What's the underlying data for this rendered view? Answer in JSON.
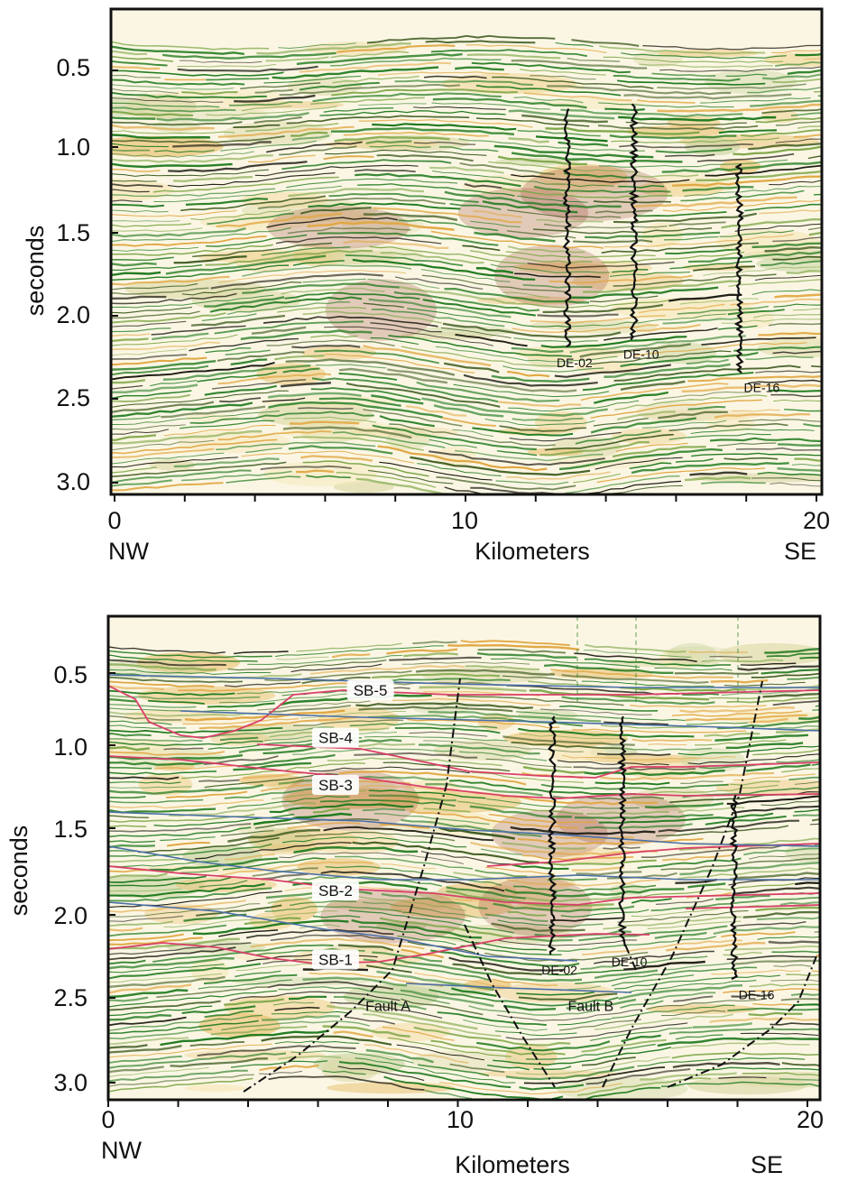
{
  "chart_data": [
    {
      "type": "seismic-section",
      "ylabel": "seconds",
      "xlabel": "Kilometers",
      "x_left_label": "NW",
      "x_right_label": "SE",
      "xlim": [
        0,
        20
      ],
      "ylim": [
        3.0,
        0.5
      ],
      "x_ticks": [
        "0",
        "10",
        "20"
      ],
      "y_ticks": [
        "0.5",
        "1.0",
        "1.5",
        "2.0",
        "2.5",
        "3.0"
      ],
      "wells": [
        {
          "name": "DE-02",
          "x_km": 12.9,
          "top_s": 0.75,
          "bottom_s": 2.2
        },
        {
          "name": "DE-10",
          "x_km": 14.8,
          "top_s": 0.72,
          "bottom_s": 2.15
        },
        {
          "name": "DE-16",
          "x_km": 17.8,
          "top_s": 1.1,
          "bottom_s": 2.35
        }
      ]
    },
    {
      "type": "seismic-section",
      "ylabel": "seconds",
      "xlabel": "Kilometers",
      "x_left_label": "NW",
      "x_right_label": "SE",
      "xlim": [
        0,
        20
      ],
      "ylim": [
        3.0,
        0.5
      ],
      "x_ticks": [
        "0",
        "10",
        "20"
      ],
      "y_ticks": [
        "0.5",
        "1.0",
        "1.5",
        "2.0",
        "2.5",
        "3.0"
      ],
      "horizons": [
        {
          "name": "SB-5",
          "x_km": 7.5,
          "t_s": 0.63
        },
        {
          "name": "SB-4",
          "x_km": 6.5,
          "t_s": 0.96
        },
        {
          "name": "SB-3",
          "x_km": 6.5,
          "t_s": 1.25
        },
        {
          "name": "SB-2",
          "x_km": 6.5,
          "t_s": 1.87
        },
        {
          "name": "SB-1",
          "x_km": 6.5,
          "t_s": 2.28
        }
      ],
      "faults": [
        {
          "name": "Fault A",
          "x_km": 8.0,
          "t_s": 2.55
        },
        {
          "name": "Fault B",
          "x_km": 13.8,
          "t_s": 2.55
        }
      ],
      "wells": [
        {
          "name": "DE-02",
          "x_km": 12.7,
          "top_s": 0.8,
          "bottom_s": 2.25
        },
        {
          "name": "DE-10",
          "x_km": 14.7,
          "top_s": 0.8,
          "bottom_s": 2.2
        },
        {
          "name": "DE-16",
          "x_km": 17.9,
          "top_s": 1.3,
          "bottom_s": 2.4
        }
      ]
    }
  ],
  "colors": {
    "seismic_green": "#1f7a1f",
    "seismic_dark": "#1a1a10",
    "seismic_orange": "#e0a640",
    "seismic_red": "#8a2f20",
    "horizon_pink": "#d9406a",
    "horizon_blue": "#4a6fa8"
  }
}
